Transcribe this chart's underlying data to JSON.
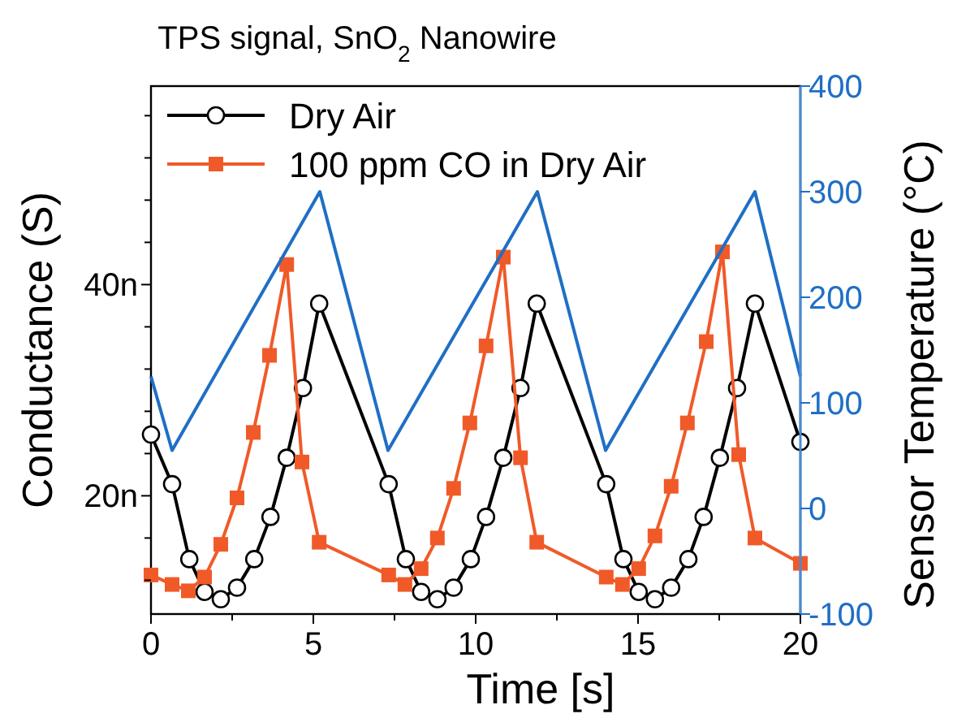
{
  "chart_data": {
    "type": "line",
    "title": "TPS signal, SnO$_{2}$ Nanowire",
    "xlabel": "Time [s]",
    "ylabel": "Conductance (S)",
    "y2label": "Sensor Temperature (°C)",
    "xlim": [
      0,
      20
    ],
    "xticks": [
      0,
      {
        "value": 2.5,
        "label": null
      },
      5,
      {
        "value": 7.5,
        "label": null
      },
      10,
      {
        "value": 12.5,
        "label": null
      },
      15,
      {
        "value": 17.5,
        "label": null
      },
      20
    ],
    "ylim": [
      8.8,
      58.8
    ],
    "yticks": [
      {
        "value": 12,
        "label": null
      },
      {
        "value": 16,
        "label": null
      },
      {
        "value": 20,
        "label": "20n"
      },
      {
        "value": 24,
        "label": null
      },
      {
        "value": 28,
        "label": null
      },
      {
        "value": 32,
        "label": null
      },
      {
        "value": 36,
        "label": null
      },
      {
        "value": 40,
        "label": "40n"
      },
      {
        "value": 44,
        "label": null
      },
      {
        "value": 48,
        "label": null
      },
      {
        "value": 52,
        "label": null
      },
      {
        "value": 56,
        "label": null
      }
    ],
    "y2lim": [
      -100,
      400
    ],
    "y2ticks": [
      -100,
      0,
      100,
      200,
      300,
      400
    ],
    "legend": "top left",
    "series": [
      {
        "name": "Dry Air",
        "color": "#000000",
        "marker": "circle",
        "x": [
          0,
          0.65,
          1.18,
          1.65,
          2.15,
          2.65,
          3.18,
          3.68,
          4.18,
          4.68,
          5.18,
          7.32,
          7.85,
          8.32,
          8.82,
          9.32,
          9.85,
          10.32,
          10.85,
          11.38,
          11.88,
          14.02,
          14.55,
          15.02,
          15.52,
          16.02,
          16.55,
          17.02,
          17.52,
          18.05,
          18.6,
          20
        ],
        "values": [
          25.8,
          21.1,
          14.0,
          10.9,
          10.2,
          11.3,
          14.0,
          18.0,
          23.6,
          30.2,
          38.2,
          21.1,
          14.0,
          10.9,
          10.2,
          11.3,
          14.0,
          18.0,
          23.6,
          30.2,
          38.2,
          21.1,
          14.0,
          10.9,
          10.2,
          11.3,
          14.0,
          18.0,
          23.6,
          30.2,
          38.2,
          25.1
        ]
      },
      {
        "name": "100 ppm CO in Dry Air",
        "color": "#f05a28",
        "marker": "square",
        "x": [
          0,
          0.65,
          1.15,
          1.65,
          2.15,
          2.65,
          3.15,
          3.65,
          4.18,
          4.65,
          5.18,
          7.32,
          7.82,
          8.32,
          8.82,
          9.32,
          9.82,
          10.32,
          10.85,
          11.38,
          11.88,
          14.02,
          14.52,
          15.02,
          15.52,
          16.02,
          16.52,
          17.1,
          17.6,
          18.1,
          18.6,
          20
        ],
        "values": [
          12.5,
          11.6,
          11.0,
          12.3,
          15.4,
          19.8,
          26.0,
          33.3,
          41.9,
          23.2,
          15.6,
          12.5,
          11.6,
          13.1,
          16.0,
          20.7,
          26.9,
          34.2,
          42.6,
          23.6,
          15.6,
          12.3,
          11.6,
          13.1,
          16.2,
          20.9,
          26.9,
          34.6,
          43.1,
          23.9,
          16.0,
          13.6
        ]
      },
      {
        "color": "#1f6fc4",
        "marker": "none",
        "axis": "y2",
        "x": [
          0,
          0.65,
          5.2,
          7.3,
          11.9,
          14.0,
          18.6,
          20
        ],
        "values": [
          125,
          55,
          300,
          55,
          300,
          55,
          300,
          125
        ]
      }
    ]
  }
}
